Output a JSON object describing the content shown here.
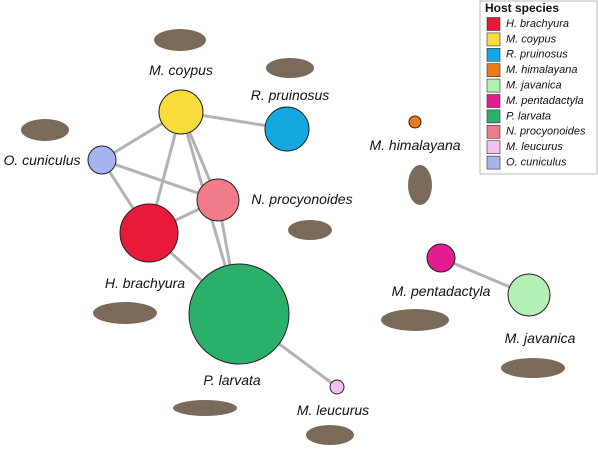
{
  "legend": {
    "title": "Host species",
    "items": [
      "H. brachyura",
      "M. coypus",
      "R. pruinosus",
      "M. himalayana",
      "M. javanica",
      "M. pentadactyla",
      "P. larvata",
      "N. procyonoides",
      "M. leucurus",
      "O. cuniculus"
    ]
  },
  "nodes": [
    "M. coypus",
    "R. pruinosus",
    "O. cuniculus",
    "N. procyonoides",
    "H. brachyura",
    "P. larvata",
    "M. leucurus",
    "M. himalayana",
    "M. pentadactyla",
    "M. javanica"
  ]
}
